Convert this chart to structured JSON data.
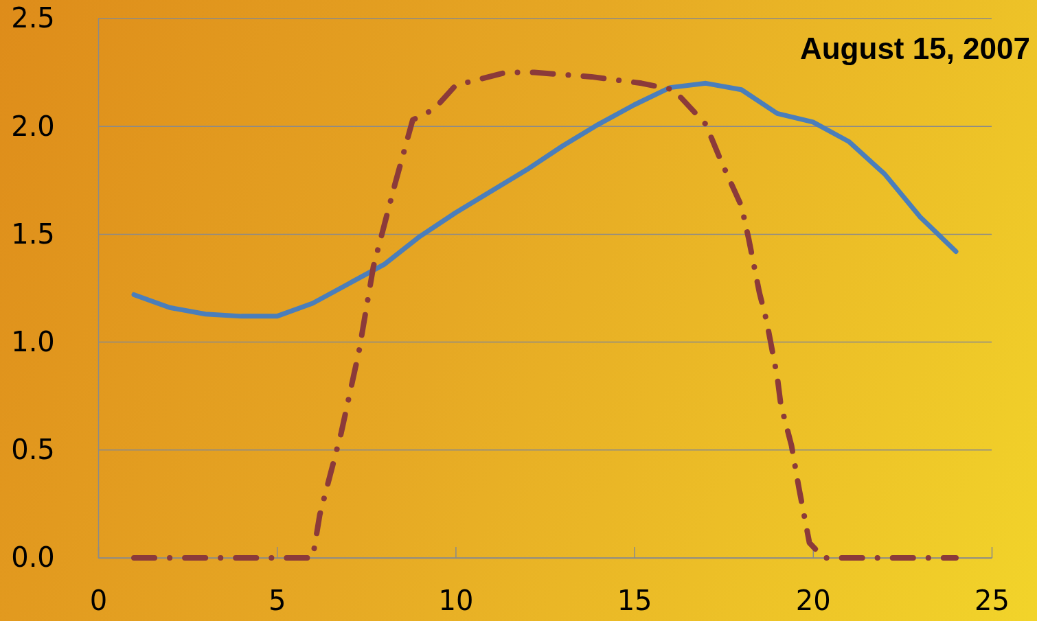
{
  "chart_data": {
    "type": "line",
    "annotations": [
      "August 15, 2007"
    ],
    "xlim": [
      0,
      25
    ],
    "xticks": [
      0,
      5,
      10,
      15,
      20,
      25
    ],
    "ylim": [
      0,
      2.5
    ],
    "yticks": [
      {
        "value": 0,
        "label": "0.0"
      },
      {
        "value": 0.5,
        "label": "0.5"
      },
      {
        "value": 1,
        "label": "1.0"
      },
      {
        "value": 1.5,
        "label": "1.5"
      },
      {
        "value": 2,
        "label": "2.0"
      },
      {
        "value": 2.5,
        "label": "2.5"
      }
    ],
    "grid": "y",
    "marker": "none",
    "series": [
      {
        "color": "#4a7ebb",
        "line_style": "solid",
        "x": [
          1,
          2,
          3,
          4,
          5,
          6,
          7,
          8,
          9,
          10,
          11,
          12,
          13,
          14,
          15,
          16,
          17,
          18,
          19,
          20,
          21,
          22,
          23,
          24
        ],
        "values": [
          1.22,
          1.16,
          1.13,
          1.12,
          1.12,
          1.18,
          1.27,
          1.36,
          1.49,
          1.6,
          1.7,
          1.8,
          1.91,
          2.01,
          2.1,
          2.18,
          2.2,
          2.17,
          2.06,
          2.02,
          1.93,
          1.78,
          1.58,
          1.42
        ]
      },
      {
        "color": "#8b3a3a",
        "line_style": "dashed",
        "x": [
          1,
          2,
          3,
          4,
          5,
          6,
          6.2,
          6.8,
          7.3,
          7.7,
          8.3,
          8.8,
          9.4,
          10,
          11.4,
          12.2,
          13,
          13.8,
          15.2,
          16.1,
          17,
          17.4,
          18,
          18.2,
          18.5,
          18.7,
          19,
          19.1,
          19.4,
          19.6,
          19.9,
          20.3,
          21,
          22,
          23,
          24
        ],
        "values": [
          0,
          0,
          0,
          0,
          0,
          0,
          0.2,
          0.58,
          0.96,
          1.35,
          1.73,
          2.03,
          2.08,
          2.19,
          2.25,
          2.25,
          2.24,
          2.23,
          2.2,
          2.17,
          2.01,
          1.85,
          1.63,
          1.48,
          1.23,
          1.1,
          0.84,
          0.71,
          0.52,
          0.33,
          0.07,
          0,
          0,
          0,
          0,
          0
        ]
      }
    ]
  }
}
